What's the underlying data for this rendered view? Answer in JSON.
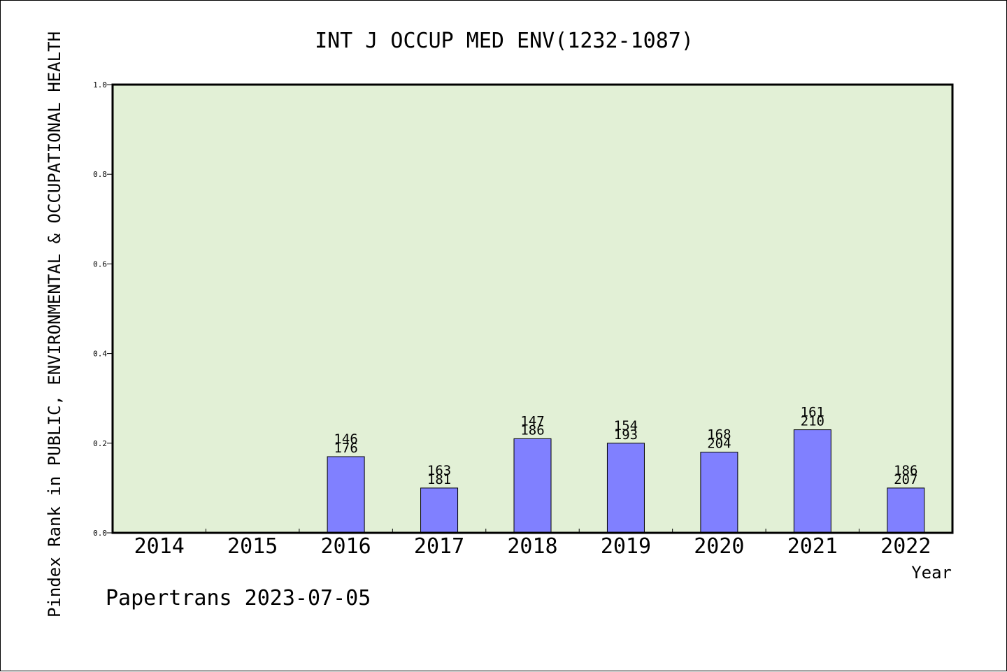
{
  "chart_data": {
    "type": "bar",
    "title": "INT J OCCUP MED ENV(1232-1087)",
    "xlabel": "Year",
    "ylabel": "Pindex Rank in PUBLIC, ENVIRONMENTAL & OCCUPATIONAL HEALTH",
    "footer": "Papertrans 2023-07-05",
    "categories": [
      "2014",
      "2015",
      "2016",
      "2017",
      "2018",
      "2019",
      "2020",
      "2021",
      "2022"
    ],
    "values": [
      null,
      null,
      0.17,
      0.1,
      0.21,
      0.2,
      0.18,
      0.23,
      0.1
    ],
    "rank_labels": [
      null,
      null,
      "146",
      "163",
      "147",
      "154",
      "168",
      "161",
      "186"
    ],
    "total_labels": [
      null,
      null,
      "176",
      "181",
      "186",
      "193",
      "204",
      "210",
      "207"
    ],
    "ylim": [
      0,
      1.0
    ],
    "yticks": [
      "0.0",
      "0.2",
      "0.4",
      "0.6",
      "0.8",
      "1.0"
    ],
    "grid": false,
    "colors": {
      "plot_background": "#e2f0d6",
      "bar_fill": "#8080ff",
      "bar_stroke": "#000000"
    }
  }
}
